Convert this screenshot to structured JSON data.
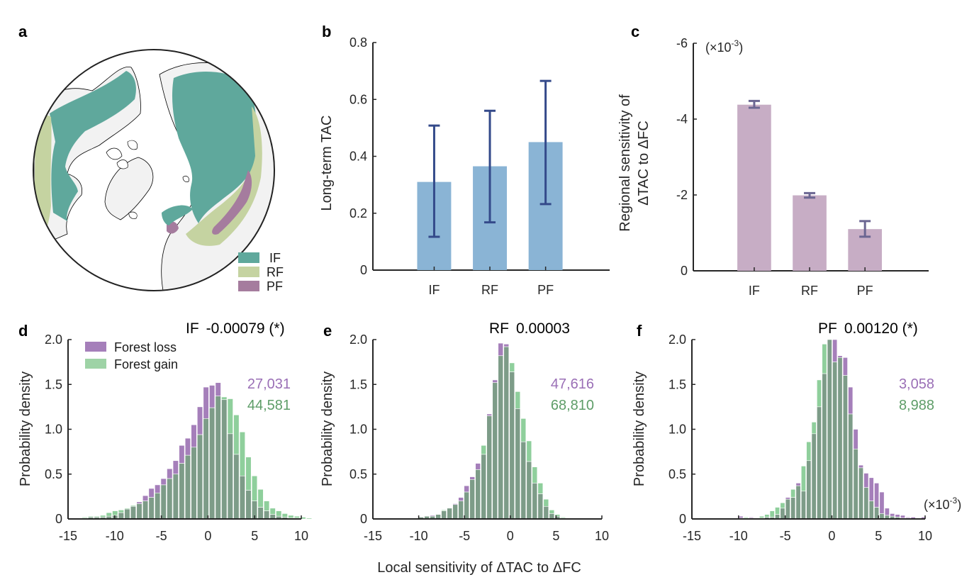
{
  "colors": {
    "IF": "#5fa89c",
    "RF": "#c5d3a1",
    "PF": "#a57c9e",
    "bar_b": "#8ab4d5",
    "err_b": "#344a8a",
    "bar_c": "#c7adc5",
    "err_c": "#6b6692",
    "loss": "#a57fba",
    "gain": "#8fcf9c",
    "overlap": "#7d9c88",
    "loss_text": "#9a6fb6",
    "gain_text": "#5e9d68",
    "axis": "#262626",
    "land": "#f2f2f2"
  },
  "chart_data": [
    {
      "panel": "a",
      "type": "map",
      "title": "",
      "description": "Northern hemisphere polar projection showing forest classes",
      "legend": [
        "IF",
        "RF",
        "PF"
      ],
      "legend_placement": "bottom-right"
    },
    {
      "panel": "b",
      "type": "bar",
      "title": "",
      "categories": [
        "IF",
        "RF",
        "PF"
      ],
      "values": [
        0.31,
        0.365,
        0.45
      ],
      "error_low": [
        0.117,
        0.168,
        0.232
      ],
      "error_high": [
        0.508,
        0.56,
        0.665
      ],
      "xlabel": "",
      "ylabel": "Long-term TAC",
      "ylim": [
        0,
        0.8
      ],
      "yticks": [
        "0",
        "0.2",
        "0.4",
        "0.6",
        "0.8"
      ],
      "grid": false
    },
    {
      "panel": "c",
      "type": "bar",
      "title": "",
      "categories": [
        "IF",
        "RF",
        "PF"
      ],
      "values": [
        -4.38,
        -1.99,
        -1.1
      ],
      "error_low": [
        -4.3,
        -1.93,
        -0.9
      ],
      "error_high": [
        -4.48,
        -2.05,
        -1.31
      ],
      "scale_note": "(×10",
      "scale_exp": "-3",
      "scale_close": ")",
      "xlabel": "",
      "ylabel_line1": "Regional sensitivity of",
      "ylabel_line2": "ΔTAC to ΔFC",
      "ylim": [
        0,
        -6
      ],
      "yticks": [
        "-6",
        "-4",
        "-2",
        "0"
      ],
      "y_reversed": true,
      "grid": false
    },
    {
      "panel": "d",
      "type": "bar",
      "subtype": "histogram",
      "title_class": "IF",
      "title_value": "-0.00079 (*)",
      "ylabel": "Probability density",
      "xlim": [
        -15,
        10
      ],
      "ylim": [
        0,
        2.0
      ],
      "xticks": [
        "-15",
        "-10",
        "-5",
        "0",
        "5",
        "10"
      ],
      "yticks": [
        "0",
        "0.5",
        "1.0",
        "1.5",
        "2.0"
      ],
      "bin_start": -13.5,
      "bin_width": 0.65,
      "count_loss": "27,031",
      "count_gain": "44,581",
      "legend": [
        "Forest loss",
        "Forest gain"
      ],
      "legend_placement": "top-left",
      "series": [
        {
          "name": "Forest loss",
          "values": [
            0.01,
            0.02,
            0.02,
            0.02,
            0.03,
            0.04,
            0.07,
            0.11,
            0.14,
            0.19,
            0.26,
            0.34,
            0.38,
            0.45,
            0.56,
            0.65,
            0.82,
            0.9,
            1.05,
            1.25,
            1.47,
            1.49,
            1.52,
            1.33,
            0.95,
            0.72,
            0.48,
            0.32,
            0.2,
            0.13,
            0.09,
            0.05,
            0.03,
            0.02,
            0.01,
            0.01,
            0.0
          ]
        },
        {
          "name": "Forest gain",
          "values": [
            0.02,
            0.03,
            0.03,
            0.04,
            0.07,
            0.09,
            0.1,
            0.12,
            0.15,
            0.17,
            0.2,
            0.24,
            0.29,
            0.38,
            0.45,
            0.5,
            0.62,
            0.71,
            0.8,
            0.94,
            1.12,
            1.24,
            1.37,
            1.36,
            1.34,
            1.16,
            0.97,
            0.69,
            0.48,
            0.33,
            0.2,
            0.12,
            0.09,
            0.06,
            0.04,
            0.03,
            0.02,
            0.01
          ]
        }
      ]
    },
    {
      "panel": "e",
      "type": "bar",
      "subtype": "histogram",
      "title_class": "RF",
      "title_value": "0.00003",
      "ylabel": "Probability density",
      "xlabel": "Local sensitivity of ΔTAC to ΔFC",
      "xlim": [
        -15,
        10
      ],
      "ylim": [
        0,
        2.0
      ],
      "xticks": [
        "-15",
        "-10",
        "-5",
        "0",
        "5",
        "10"
      ],
      "yticks": [
        "0",
        "0.5",
        "1.0",
        "1.5",
        "2.0"
      ],
      "bin_start": -10.0,
      "bin_width": 0.62,
      "count_loss": "47,616",
      "count_gain": "68,810",
      "series": [
        {
          "name": "Forest loss",
          "values": [
            0.02,
            0.03,
            0.04,
            0.05,
            0.09,
            0.12,
            0.17,
            0.24,
            0.37,
            0.47,
            0.62,
            0.72,
            1.17,
            1.55,
            1.96,
            1.95,
            1.64,
            1.23,
            0.86,
            0.64,
            0.4,
            0.28,
            0.14,
            0.06,
            0.03,
            0.01,
            0.01
          ]
        },
        {
          "name": "Forest gain",
          "values": [
            0.02,
            0.03,
            0.03,
            0.05,
            0.1,
            0.12,
            0.16,
            0.2,
            0.3,
            0.44,
            0.55,
            0.82,
            1.15,
            1.52,
            1.82,
            1.92,
            1.74,
            1.42,
            1.12,
            0.87,
            0.58,
            0.4,
            0.22,
            0.1,
            0.05,
            0.02,
            0.01
          ]
        }
      ]
    },
    {
      "panel": "f",
      "type": "bar",
      "subtype": "histogram",
      "title_class": "PF",
      "title_value": "0.00120 (*)",
      "ylabel": "Probability density",
      "xlim": [
        -15,
        10
      ],
      "ylim": [
        0,
        2.0
      ],
      "xticks": [
        "-15",
        "-10",
        "-5",
        "0",
        "5",
        "10"
      ],
      "yticks": [
        "0",
        "0.5",
        "1.0",
        "1.5",
        "2.0"
      ],
      "scale_note": "(×10",
      "scale_exp": "-3",
      "scale_close": ")",
      "bin_start": -10.0,
      "bin_width": 0.56,
      "count_loss": "3,058",
      "count_gain": "8,988",
      "series": [
        {
          "name": "Forest loss",
          "values": [
            0.03,
            0.01,
            0.02,
            0.01,
            0.01,
            0.02,
            0.02,
            0.05,
            0.12,
            0.24,
            0.24,
            0.4,
            0.31,
            0.65,
            0.95,
            1.25,
            1.62,
            2.0,
            2.0,
            1.82,
            1.8,
            1.47,
            1.0,
            0.6,
            0.51,
            0.46,
            0.4,
            0.3,
            0.12,
            0.06,
            0.05,
            0.04,
            0.02,
            0.02,
            0.01,
            0.02
          ]
        },
        {
          "name": "Forest gain",
          "values": [
            0.01,
            0.02,
            0.01,
            0.01,
            0.03,
            0.05,
            0.09,
            0.13,
            0.18,
            0.22,
            0.33,
            0.37,
            0.59,
            0.86,
            1.08,
            1.55,
            1.95,
            2.0,
            1.75,
            1.8,
            1.6,
            1.17,
            0.78,
            0.57,
            0.35,
            0.2,
            0.13,
            0.06,
            0.04,
            0.03,
            0.02,
            0.01,
            0.01,
            0.0,
            0.0,
            0.0
          ]
        }
      ]
    }
  ]
}
